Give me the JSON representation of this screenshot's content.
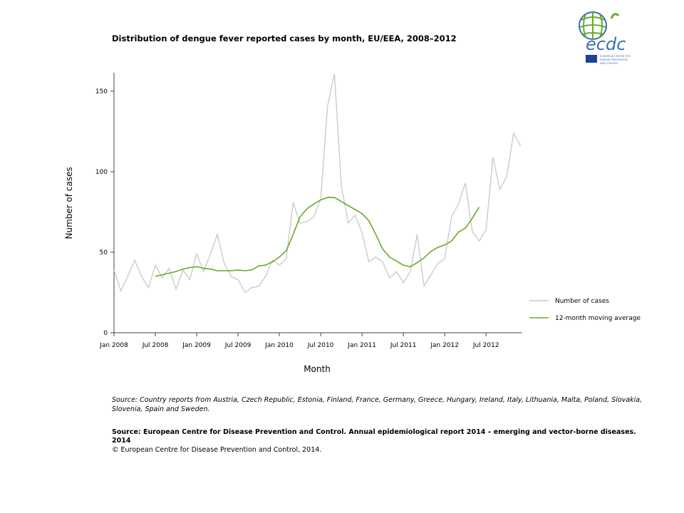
{
  "chart_data": {
    "type": "line",
    "title": "Distribution  of dengue fever reported cases by month, EU/EEA,  2008–2012",
    "xlabel": "Month",
    "ylabel": "Number of cases",
    "ylim": [
      0,
      160
    ],
    "yticks": [
      0,
      50,
      100,
      150
    ],
    "xtick_labels": [
      "Jan 2008",
      "Jul 2008",
      "Jan 2009",
      "Jul 2009",
      "Jan 2010",
      "Jul 2010",
      "Jan 2011",
      "Jul 2011",
      "Jan 2012",
      "Jul 2012"
    ],
    "x_start": "Jan 2008",
    "x_end": "Dec 2012",
    "grid": false,
    "legend_placement": "right",
    "series": [
      {
        "name": "Number of cases",
        "color": "#c8c8c8",
        "start": "Jan 2008",
        "values": [
          39,
          26,
          35,
          45,
          35,
          28,
          42,
          34,
          40,
          27,
          39,
          33,
          49,
          38,
          49,
          61,
          43,
          35,
          33,
          25,
          28,
          29,
          35,
          45,
          42,
          46,
          81,
          68,
          69,
          72,
          83,
          141,
          161,
          91,
          68,
          73,
          62,
          44,
          47,
          44,
          34,
          38,
          31,
          38,
          61,
          29,
          36,
          43,
          46,
          72,
          80,
          93,
          63,
          57,
          64,
          109,
          89,
          97,
          124,
          116
        ]
      },
      {
        "name": "12-month moving average",
        "color": "#6aaa2a",
        "start": "Jul 2008",
        "values": [
          35,
          36,
          37,
          38,
          39.5,
          40.5,
          41,
          40,
          39.5,
          38.5,
          38.5,
          38.5,
          39,
          38.5,
          39,
          41.5,
          42,
          44,
          47,
          51,
          61,
          72,
          77,
          80,
          82.5,
          84,
          84,
          81.5,
          79,
          76.5,
          74,
          69.5,
          61,
          52,
          47,
          44.5,
          42,
          41,
          43.5,
          46.5,
          50.5,
          53,
          54.5,
          57,
          62.5,
          65,
          71,
          78
        ]
      }
    ]
  },
  "notes": {
    "source1": "Source: Country reports from Austria, Czech Republic, Estonia, Finland, France, Germany, Greece, Hungary, Ireland, Italy, Lithuania, Malta, Poland, Slovakia, Slovenia, Spain and Sweden.",
    "source2": "Source: European Centre for Disease Prevention and Control.  Annual epidemiological report 2014 – emerging and vector-borne diseases. 2014",
    "copyright": "© European Centre for Disease Prevention and Control, 2014."
  },
  "logo": {
    "text": "ecdc",
    "subtitle": "EUROPEAN CENTRE FOR DISEASE PREVENTION AND CONTROL",
    "color": "#3a6fb0",
    "accent": "#6aaa2a"
  }
}
